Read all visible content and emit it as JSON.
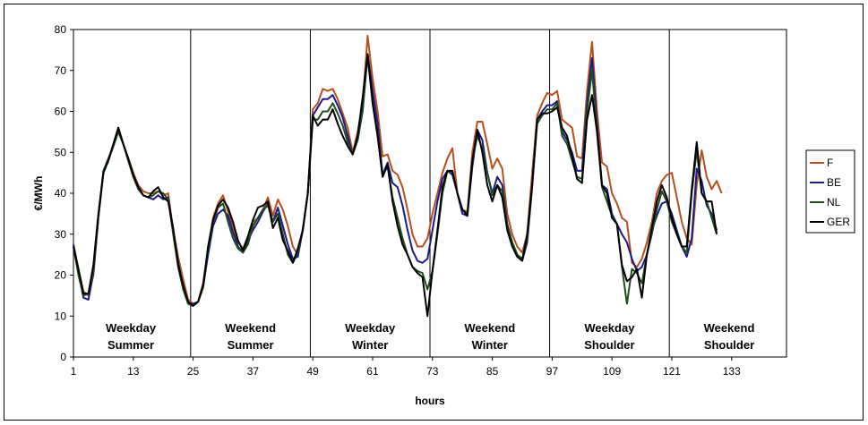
{
  "chart_data": {
    "type": "line",
    "title": "",
    "xlabel": "hours",
    "ylabel": "€/MWh",
    "xlim": [
      1,
      144
    ],
    "ylim": [
      0,
      80
    ],
    "x_ticks": [
      1,
      13,
      25,
      37,
      49,
      61,
      73,
      85,
      97,
      109,
      121,
      133
    ],
    "y_ticks": [
      0,
      10,
      20,
      30,
      40,
      50,
      60,
      70,
      80
    ],
    "grid": false,
    "legend": "right",
    "segments": [
      {
        "line1": "Weekday",
        "line2": "Summer"
      },
      {
        "line1": "Weekend",
        "line2": "Summer"
      },
      {
        "line1": "Weekday",
        "line2": "Winter"
      },
      {
        "line1": "Weekend",
        "line2": "Winter"
      },
      {
        "line1": "Weekday",
        "line2": "Shoulder"
      },
      {
        "line1": "Weekend",
        "line2": "Shoulder"
      }
    ],
    "segment_bounds": [
      24.5,
      48.5,
      72.5,
      96.5,
      120.5
    ],
    "series": [
      {
        "name": "F",
        "color": "#b5501e",
        "values": [
          27.5,
          21.5,
          16,
          15,
          20,
          34,
          45,
          48,
          52,
          56,
          52,
          48.5,
          45,
          42,
          40.5,
          40,
          40,
          40.5,
          39.5,
          40,
          31,
          24.5,
          19,
          14,
          13,
          13.5,
          18,
          26,
          34,
          37.5,
          39.5,
          35.5,
          32,
          28,
          26.5,
          29.5,
          33,
          34,
          36,
          39,
          34.5,
          38.5,
          36,
          32,
          27,
          25,
          31.5,
          40,
          60.5,
          62,
          65.5,
          65,
          65.5,
          63,
          59.5,
          56,
          50,
          55,
          62,
          78.5,
          68,
          60,
          49,
          49.5,
          45.5,
          44.5,
          41.5,
          36,
          30,
          27,
          27,
          29,
          35,
          40,
          45,
          48.5,
          51,
          40,
          36,
          35.5,
          50,
          57.5,
          57.5,
          52,
          46,
          48.5,
          46,
          35,
          30,
          27,
          25.5,
          30,
          45,
          59,
          62,
          64.5,
          64,
          65,
          58,
          57,
          56,
          49,
          48.5,
          65,
          77,
          60,
          47.5,
          46.5,
          40,
          37.5,
          34,
          33,
          23,
          22,
          24,
          28,
          33,
          40,
          43,
          44.5,
          45,
          39,
          33,
          29,
          27.5,
          42,
          50.5,
          44,
          41,
          43,
          40
        ]
      },
      {
        "name": "BE",
        "color": "#1a1a8c",
        "values": [
          27.5,
          20.5,
          14.5,
          14,
          20.5,
          34,
          45,
          48,
          51.5,
          55.5,
          52,
          48,
          44,
          41.5,
          39.5,
          39,
          38.5,
          39.5,
          38.5,
          39,
          30.5,
          23,
          17,
          13,
          13,
          13.5,
          17,
          25,
          32,
          35,
          36,
          34.5,
          30.5,
          27,
          25.5,
          28.5,
          31,
          33,
          35.5,
          37.5,
          33,
          36.5,
          32,
          27.5,
          24,
          24.5,
          31,
          40,
          59,
          61,
          63,
          63,
          64,
          61.5,
          58.5,
          54,
          49.5,
          53,
          60,
          74,
          65,
          57,
          44.5,
          47.5,
          42.5,
          41.5,
          37,
          31,
          26,
          23.5,
          23,
          24,
          31,
          38,
          43.5,
          45.5,
          44.5,
          40,
          35,
          34.5,
          46.5,
          55.5,
          53,
          45,
          40,
          44,
          42,
          32.5,
          28,
          25,
          23.5,
          28,
          41.5,
          58,
          60,
          61.5,
          61.5,
          62.5,
          55,
          53,
          50,
          45.5,
          45.5,
          62,
          73,
          57,
          42,
          41,
          35,
          32.5,
          30,
          28,
          24,
          21,
          22,
          25,
          31,
          34.5,
          37.5,
          38,
          35,
          31,
          27,
          24.5,
          29,
          46,
          43,
          37,
          35,
          31
        ]
      },
      {
        "name": "NL",
        "color": "#1e4d1e",
        "values": [
          27,
          20,
          15,
          15.5,
          21,
          34.5,
          45.5,
          48.5,
          51.5,
          55,
          52,
          48,
          44,
          41,
          39.5,
          39,
          39.5,
          40.5,
          40,
          38.5,
          30,
          22,
          16.5,
          13,
          12.5,
          13.5,
          17,
          26,
          33,
          36.5,
          37.5,
          33,
          29,
          26.5,
          25.5,
          27.5,
          32,
          34,
          36,
          37,
          33,
          35,
          30,
          25,
          23,
          25.5,
          31,
          40,
          58,
          58,
          60,
          60,
          62,
          59.5,
          56.5,
          52.5,
          49.5,
          53,
          60.5,
          73.5,
          62,
          54,
          44.5,
          46.5,
          39,
          34,
          29,
          25,
          22,
          21,
          20.5,
          16.5,
          21,
          30,
          40,
          45.5,
          45,
          40,
          36,
          35,
          48,
          54,
          51,
          45,
          39.5,
          42,
          40.5,
          32,
          28,
          25,
          24,
          29,
          42,
          57,
          59,
          60.5,
          60.5,
          62,
          54,
          52,
          48,
          44,
          43.5,
          60,
          70,
          55,
          41.5,
          38,
          34.5,
          32.5,
          22,
          13,
          21.5,
          20.5,
          18,
          25,
          30,
          36,
          40.5,
          38,
          33,
          30,
          27,
          25.5,
          40,
          50.5,
          40,
          38,
          34,
          30
        ]
      },
      {
        "name": "GER",
        "color": "#000000",
        "values": [
          27,
          21.5,
          15.5,
          15.5,
          22.5,
          35,
          45,
          48,
          52,
          56,
          52,
          48.5,
          44.5,
          41.5,
          39.5,
          39,
          40.5,
          41.5,
          39,
          38,
          31.5,
          22.5,
          17.5,
          13.5,
          12.5,
          13.5,
          17.5,
          27,
          33.5,
          37,
          38.5,
          36.5,
          33,
          28.5,
          26,
          29.5,
          33.5,
          36.5,
          37,
          38,
          31.5,
          34,
          28.5,
          26,
          23,
          26.5,
          31,
          40,
          59,
          56.5,
          58,
          58,
          60.5,
          57,
          54,
          51.5,
          49.5,
          54,
          63.5,
          74,
          62,
          54,
          44,
          47,
          38,
          32,
          27.5,
          25,
          22,
          20.5,
          19.5,
          10,
          21,
          31,
          41.5,
          45.5,
          45.5,
          40,
          36,
          34.5,
          48,
          55.5,
          50,
          42,
          38,
          42,
          39,
          31,
          27,
          24.5,
          23.5,
          30,
          42,
          58,
          59.5,
          59.5,
          60,
          61,
          56,
          54,
          49,
          43.5,
          42.5,
          58,
          64,
          55,
          42,
          40,
          34,
          32.5,
          22.5,
          18.5,
          19.5,
          21.5,
          14.5,
          25,
          31.5,
          38,
          42,
          39,
          34,
          30,
          27,
          27,
          41,
          52.5,
          40,
          38,
          38,
          30
        ]
      }
    ]
  }
}
